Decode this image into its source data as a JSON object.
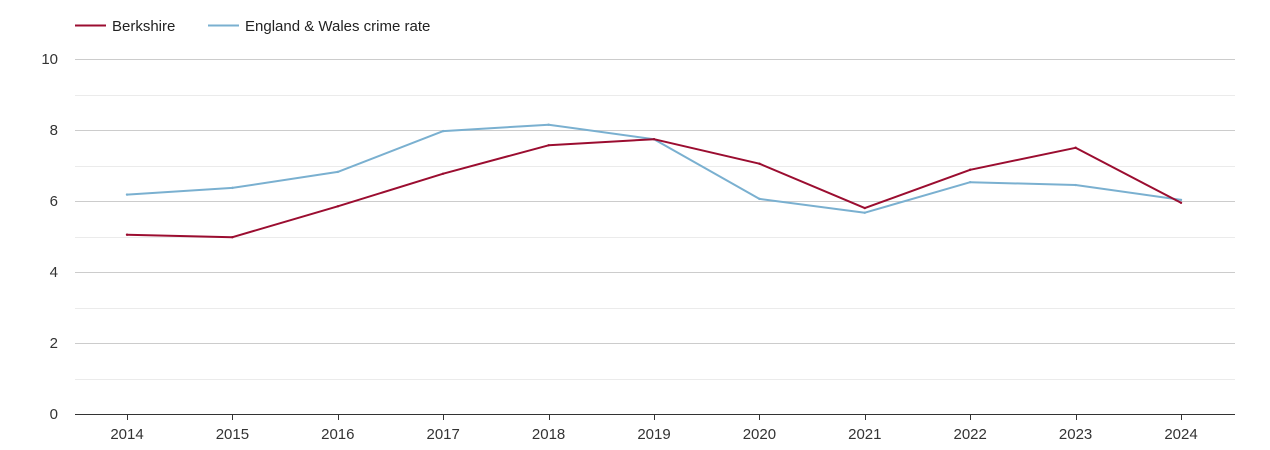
{
  "chart_data": {
    "type": "line",
    "title": "",
    "xlabel": "",
    "ylabel": "",
    "categories": [
      "2014",
      "2015",
      "2016",
      "2017",
      "2018",
      "2019",
      "2020",
      "2021",
      "2022",
      "2023",
      "2024"
    ],
    "ylim": [
      0,
      10
    ],
    "yticks": [
      "0",
      "2",
      "4",
      "6",
      "8",
      "10"
    ],
    "grid": true,
    "legend_position": "top-left",
    "series": [
      {
        "name": "Berkshire",
        "color": "#9b0d30",
        "values": [
          5.05,
          4.98,
          5.85,
          6.77,
          7.57,
          7.74,
          7.05,
          5.8,
          6.88,
          7.5,
          5.95
        ]
      },
      {
        "name": "England & Wales crime rate",
        "color": "#7ab0d0",
        "values": [
          6.18,
          6.37,
          6.82,
          7.97,
          8.15,
          7.74,
          6.06,
          5.67,
          6.53,
          6.45,
          6.03
        ]
      }
    ]
  }
}
